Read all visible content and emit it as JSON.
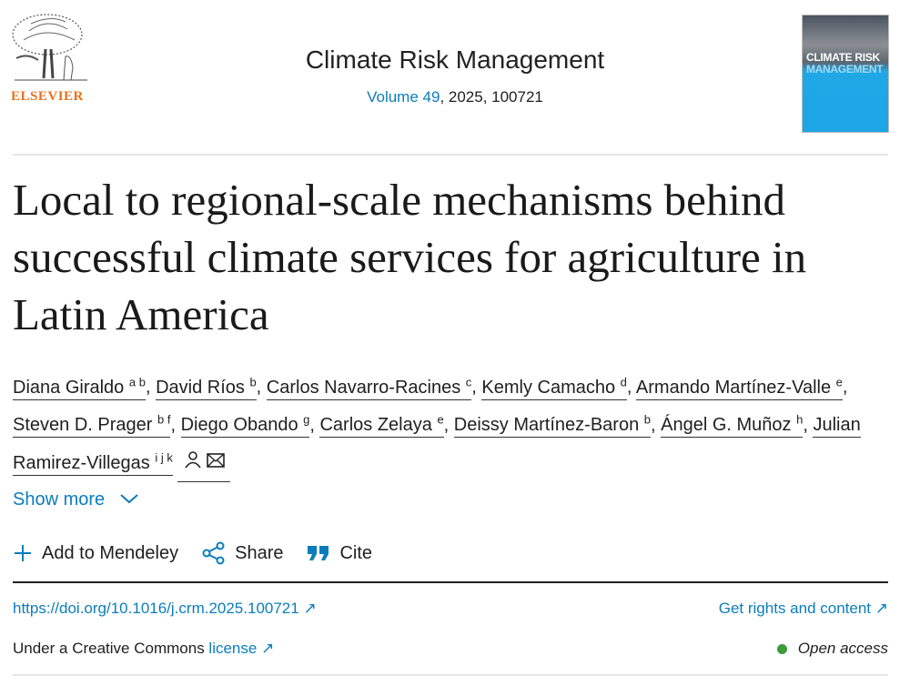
{
  "publisher": {
    "name": "ELSEVIER",
    "color": "#e9711c"
  },
  "journal": {
    "title": "Climate Risk Management",
    "volume_link": "Volume 49",
    "citation_rest": ", 2025, 100721",
    "cover_line1": "CLIMATE RISK",
    "cover_line2": "MANAGEMENT"
  },
  "article": {
    "title": "Local to regional-scale mechanisms behind successful climate services for agriculture in Latin America"
  },
  "authors": [
    {
      "name": "Diana Giraldo",
      "sup": "a b"
    },
    {
      "name": "David Ríos",
      "sup": "b"
    },
    {
      "name": "Carlos Navarro-Racines",
      "sup": "c"
    },
    {
      "name": "Kemly Camacho",
      "sup": "d"
    },
    {
      "name": "Armando Martínez-Valle",
      "sup": "e"
    },
    {
      "name": "Steven D. Prager",
      "sup": "b f"
    },
    {
      "name": "Diego Obando",
      "sup": "g"
    },
    {
      "name": "Carlos Zelaya",
      "sup": "e"
    },
    {
      "name": "Deissy Martínez-Baron",
      "sup": "b"
    },
    {
      "name": "Ángel G. Muñoz",
      "sup": "h"
    },
    {
      "name": "Julian Ramirez-Villegas",
      "sup": "i j k"
    }
  ],
  "show_more": "Show more",
  "actions": {
    "mendeley": "Add to Mendeley",
    "share": "Share",
    "cite": "Cite"
  },
  "doi": "https://doi.org/10.1016/j.crm.2025.100721",
  "rights": "Get rights and content",
  "license_prefix": "Under a Creative Commons ",
  "license_link": "license",
  "open_access": "Open access",
  "colors": {
    "link": "#0c7dbb",
    "open_access_dot": "#3a9b3a"
  }
}
